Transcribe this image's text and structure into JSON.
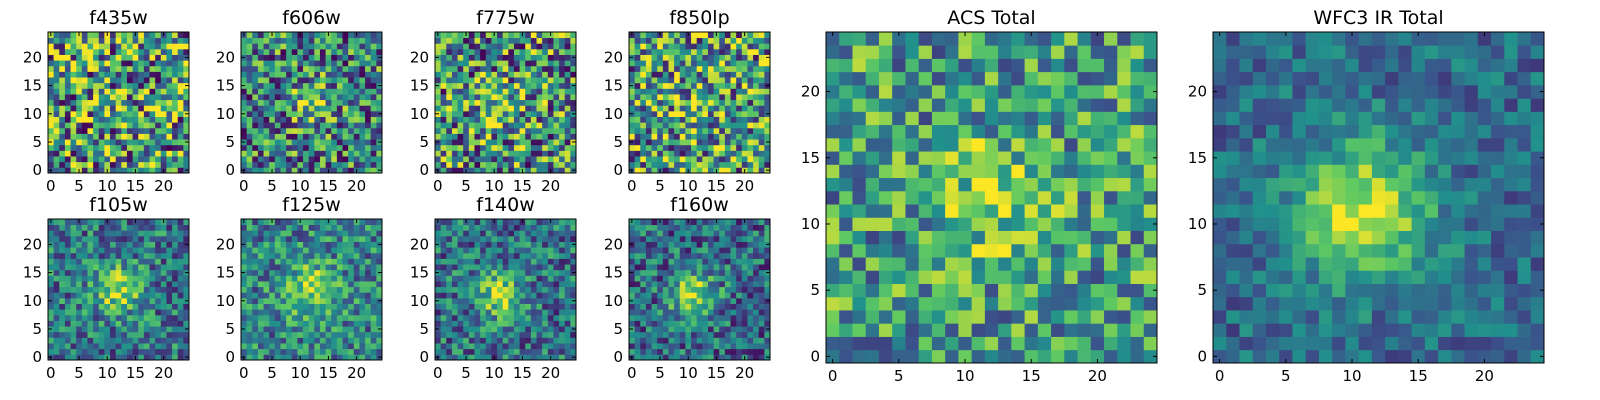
{
  "colormap": [
    "#440154",
    "#3b528b",
    "#21918c",
    "#5ec962",
    "#fde725"
  ],
  "chart_data": [
    {
      "type": "heatmap",
      "title": "f435w",
      "grid_size": 25,
      "xticks": [
        0,
        5,
        10,
        15,
        20
      ],
      "yticks": [
        0,
        5,
        10,
        15,
        20
      ],
      "xlim": [
        0,
        24
      ],
      "ylim": [
        0,
        24
      ],
      "source_center": [
        12,
        12
      ],
      "source_strength": 0.05,
      "source_width": 3,
      "noise": 0.55,
      "base": 0.55,
      "seed": 11
    },
    {
      "type": "heatmap",
      "title": "f606w",
      "grid_size": 25,
      "xticks": [
        0,
        5,
        10,
        15,
        20
      ],
      "yticks": [
        0,
        5,
        10,
        15,
        20
      ],
      "xlim": [
        0,
        24
      ],
      "ylim": [
        0,
        24
      ],
      "source_center": [
        12,
        12
      ],
      "source_strength": 0.35,
      "source_width": 2.5,
      "noise": 0.45,
      "base": 0.45,
      "seed": 23
    },
    {
      "type": "heatmap",
      "title": "f775w",
      "grid_size": 25,
      "xticks": [
        0,
        5,
        10,
        15,
        20
      ],
      "yticks": [
        0,
        5,
        10,
        15,
        20
      ],
      "xlim": [
        0,
        24
      ],
      "ylim": [
        0,
        24
      ],
      "source_center": [
        11,
        11
      ],
      "source_strength": 0.25,
      "source_width": 3,
      "noise": 0.5,
      "base": 0.5,
      "seed": 37
    },
    {
      "type": "heatmap",
      "title": "f850lp",
      "grid_size": 25,
      "xticks": [
        0,
        5,
        10,
        15,
        20
      ],
      "yticks": [
        0,
        5,
        10,
        15,
        20
      ],
      "xlim": [
        0,
        24
      ],
      "ylim": [
        0,
        24
      ],
      "source_center": [
        12,
        12
      ],
      "source_strength": 0.12,
      "source_width": 3,
      "noise": 0.5,
      "base": 0.55,
      "seed": 41
    },
    {
      "type": "heatmap",
      "title": "f105w",
      "grid_size": 25,
      "xticks": [
        0,
        5,
        10,
        15,
        20
      ],
      "yticks": [
        0,
        5,
        10,
        15,
        20
      ],
      "xlim": [
        0,
        24
      ],
      "ylim": [
        0,
        24
      ],
      "source_center": [
        12,
        12
      ],
      "source_strength": 0.45,
      "source_width": 3,
      "noise": 0.3,
      "base": 0.4,
      "seed": 53
    },
    {
      "type": "heatmap",
      "title": "f125w",
      "grid_size": 25,
      "xticks": [
        0,
        5,
        10,
        15,
        20
      ],
      "yticks": [
        0,
        5,
        10,
        15,
        20
      ],
      "xlim": [
        0,
        24
      ],
      "ylim": [
        0,
        24
      ],
      "source_center": [
        12,
        12
      ],
      "source_strength": 0.4,
      "source_width": 3.2,
      "noise": 0.3,
      "base": 0.45,
      "seed": 61
    },
    {
      "type": "heatmap",
      "title": "f140w",
      "grid_size": 25,
      "xticks": [
        0,
        5,
        10,
        15,
        20
      ],
      "yticks": [
        0,
        5,
        10,
        15,
        20
      ],
      "xlim": [
        0,
        24
      ],
      "ylim": [
        0,
        24
      ],
      "source_center": [
        11,
        11
      ],
      "source_strength": 0.5,
      "source_width": 2.8,
      "noise": 0.3,
      "base": 0.38,
      "seed": 71
    },
    {
      "type": "heatmap",
      "title": "f160w",
      "grid_size": 25,
      "xticks": [
        0,
        5,
        10,
        15,
        20
      ],
      "yticks": [
        0,
        5,
        10,
        15,
        20
      ],
      "xlim": [
        0,
        24
      ],
      "ylim": [
        0,
        24
      ],
      "source_center": [
        11,
        11
      ],
      "source_strength": 0.55,
      "source_width": 2.8,
      "noise": 0.3,
      "base": 0.35,
      "seed": 83
    },
    {
      "type": "heatmap",
      "title": "ACS Total",
      "grid_size": 25,
      "xticks": [
        0,
        5,
        10,
        15,
        20
      ],
      "yticks": [
        0,
        5,
        10,
        15,
        20
      ],
      "xlim": [
        0,
        24
      ],
      "ylim": [
        0,
        24
      ],
      "source_center": [
        12,
        12
      ],
      "source_strength": 0.3,
      "source_width": 2.8,
      "noise": 0.35,
      "base": 0.55,
      "seed": 97
    },
    {
      "type": "heatmap",
      "title": "WFC3 IR Total",
      "grid_size": 25,
      "xticks": [
        0,
        5,
        10,
        15,
        20
      ],
      "yticks": [
        0,
        5,
        10,
        15,
        20
      ],
      "xlim": [
        0,
        24
      ],
      "ylim": [
        0,
        24
      ],
      "source_center": [
        11,
        11
      ],
      "source_strength": 0.6,
      "source_width": 3.5,
      "noise": 0.18,
      "base": 0.35,
      "seed": 101
    }
  ]
}
